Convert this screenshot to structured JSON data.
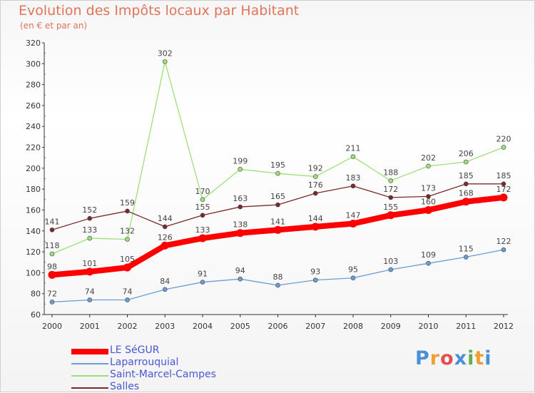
{
  "header": {
    "title": "Evolution des Impôts locaux par Habitant",
    "subtitle": "(en € et par an)"
  },
  "logo": {
    "text": "Proxiti",
    "colors": [
      "#4a90d9",
      "#f0a030",
      "#e05050",
      "#4a90d9",
      "#60b050",
      "#f0a030",
      "#4a90d9"
    ]
  },
  "chart_data": {
    "type": "line",
    "title": "Evolution des Impôts locaux par Habitant",
    "subtitle": "(en € et par an)",
    "xlabel": "",
    "ylabel": "",
    "ylim": [
      60,
      320
    ],
    "yticks": [
      60,
      80,
      100,
      120,
      140,
      160,
      180,
      200,
      220,
      240,
      260,
      280,
      300,
      320
    ],
    "grid": false,
    "legend_position": "bottom-left",
    "x": [
      "2000",
      "2001",
      "2002",
      "2003",
      "2004",
      "2005",
      "2006",
      "2007",
      "2008",
      "2009",
      "2010",
      "2011",
      "2012"
    ],
    "series": [
      {
        "name": "LE SéGUR",
        "color": "#ff0000",
        "emphasis": true,
        "values": [
          98,
          101,
          105,
          126,
          133,
          138,
          141,
          144,
          147,
          155,
          160,
          168,
          172
        ]
      },
      {
        "name": "Laparrouquial",
        "color": "#6a9ed3",
        "values": [
          72,
          74,
          74,
          84,
          91,
          94,
          88,
          93,
          95,
          103,
          109,
          115,
          122
        ]
      },
      {
        "name": "Saint-Marcel-Campes",
        "color": "#9de07a",
        "values": [
          118,
          133,
          132,
          302,
          170,
          199,
          195,
          192,
          211,
          188,
          202,
          206,
          220
        ]
      },
      {
        "name": "Salles",
        "color": "#7a2a2a",
        "values": [
          141,
          152,
          159,
          144,
          155,
          163,
          165,
          176,
          183,
          172,
          173,
          185,
          185
        ]
      }
    ]
  }
}
